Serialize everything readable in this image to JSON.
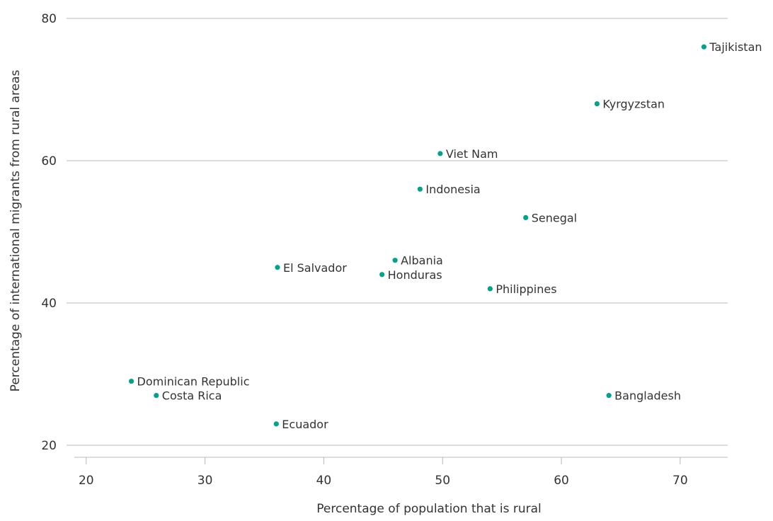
{
  "chart_data": {
    "type": "scatter",
    "title": "",
    "xlabel": "Percentage of population that is rural",
    "ylabel": "Percentage of international migrants from rural areas",
    "xlim": [
      19,
      74
    ],
    "ylim": [
      20,
      80
    ],
    "xticks": [
      20,
      30,
      40,
      50,
      60,
      70
    ],
    "yticks": [
      20,
      40,
      60,
      80
    ],
    "grid": "horizontal",
    "point_color": "#00a28a",
    "points": [
      {
        "label": "Tajikistan",
        "x": 72.0,
        "y": 76
      },
      {
        "label": "Kyrgyzstan",
        "x": 63.0,
        "y": 68
      },
      {
        "label": "Viet Nam",
        "x": 49.8,
        "y": 61
      },
      {
        "label": "Indonesia",
        "x": 48.1,
        "y": 56
      },
      {
        "label": "Senegal",
        "x": 57.0,
        "y": 52
      },
      {
        "label": "Albania",
        "x": 46.0,
        "y": 46
      },
      {
        "label": "El Salvador",
        "x": 36.1,
        "y": 45
      },
      {
        "label": "Honduras",
        "x": 44.9,
        "y": 44
      },
      {
        "label": "Philippines",
        "x": 54.0,
        "y": 42
      },
      {
        "label": "Dominican Republic",
        "x": 23.8,
        "y": 29
      },
      {
        "label": "Costa Rica",
        "x": 25.9,
        "y": 27
      },
      {
        "label": "Bangladesh",
        "x": 64.0,
        "y": 27
      },
      {
        "label": "Ecuador",
        "x": 36.0,
        "y": 23
      }
    ]
  }
}
